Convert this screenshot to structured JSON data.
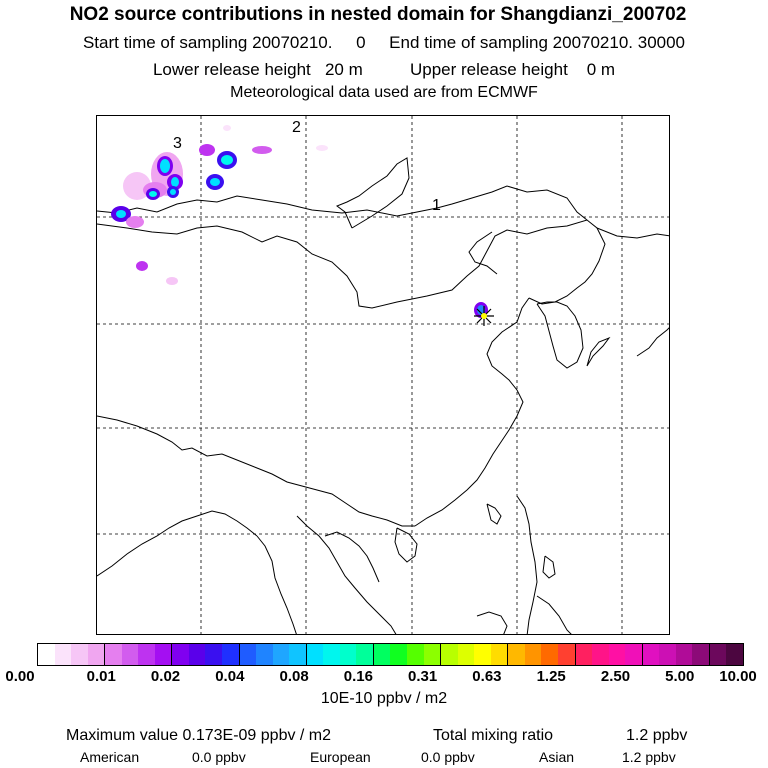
{
  "header": {
    "title": "NO2 source contributions in nested domain for Shangdianzi_200702",
    "start_label": "Start time of sampling",
    "start_value": "20070210.     0",
    "end_label": "End time of sampling",
    "end_value": "20070210. 30000",
    "lower_label": "Lower release height",
    "lower_value": "20 m",
    "upper_label": "Upper release height",
    "upper_value": "0 m",
    "met": "Meteorological data used are from ECMWF"
  },
  "map": {
    "region_labels": [
      "1",
      "2",
      "3"
    ],
    "station_marker": "star-marker-icon"
  },
  "colorbar": {
    "tick_labels": [
      "0.00",
      "0.01",
      "0.02",
      "0.04",
      "0.08",
      "0.16",
      "0.31",
      "0.63",
      "1.25",
      "2.50",
      "5.00",
      "10.00"
    ],
    "unit": "10E-10 ppbv / m2",
    "colors": [
      "#ffffff",
      "#fbe3fb",
      "#f6c6f6",
      "#f0a6f0",
      "#e57fef",
      "#d25cee",
      "#be33f0",
      "#a40ff2",
      "#8000f0",
      "#5a00ea",
      "#3a10f0",
      "#1f30ff",
      "#1f5cff",
      "#1f84ff",
      "#1fa6ff",
      "#10c4ff",
      "#00e0ff",
      "#00f6ee",
      "#00ffcc",
      "#00ff9a",
      "#00ff60",
      "#10ff20",
      "#55ff00",
      "#8cff00",
      "#b8ff00",
      "#ddff00",
      "#ffff00",
      "#ffdc00",
      "#ffb800",
      "#ff9400",
      "#ff6a00",
      "#ff4030",
      "#ff2060",
      "#ff1488",
      "#ff10a4",
      "#f010b8",
      "#e010c0",
      "#cc10b4",
      "#b00c98",
      "#8c0a78",
      "#6c085c",
      "#4c0640"
    ]
  },
  "stats": {
    "max_label": "Maximum value",
    "max_value": "0.173E-09 ppbv / m2",
    "total_label": "Total mixing ratio",
    "total_value": "1.2 ppbv",
    "american_label": "American",
    "american_value": "0.0 ppbv",
    "european_label": "European",
    "european_value": "0.0 ppbv",
    "asian_label": "Asian",
    "asian_value": "1.2 ppbv"
  }
}
